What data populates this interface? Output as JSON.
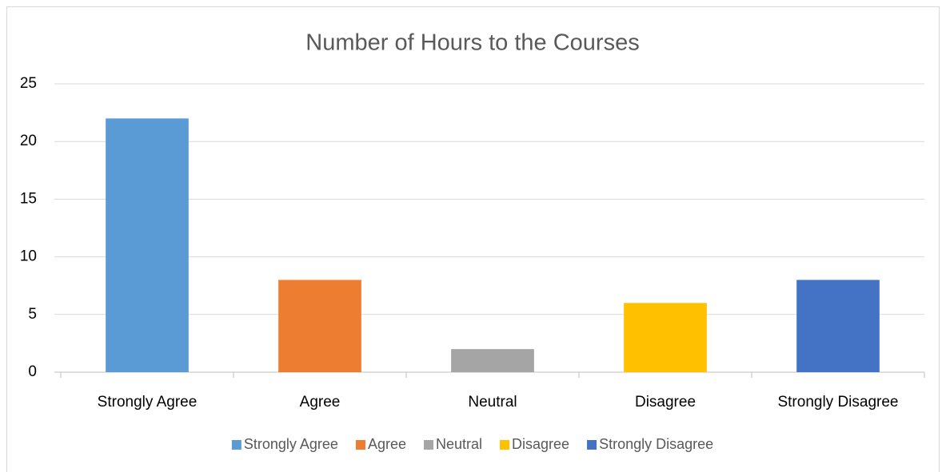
{
  "chart_data": {
    "type": "bar",
    "title": "Number of Hours to the Courses",
    "categories": [
      "Strongly Agree",
      "Agree",
      "Neutral",
      "Disagree",
      "Strongly Disagree"
    ],
    "values": [
      22,
      8,
      2,
      6,
      8
    ],
    "colors": [
      "#5b9bd5",
      "#ed7d31",
      "#a5a5a5",
      "#ffc000",
      "#4472c4"
    ],
    "ylim": [
      0,
      25
    ],
    "yticks": [
      0,
      5,
      10,
      15,
      20,
      25
    ],
    "grid": true,
    "legend": "bottom"
  }
}
